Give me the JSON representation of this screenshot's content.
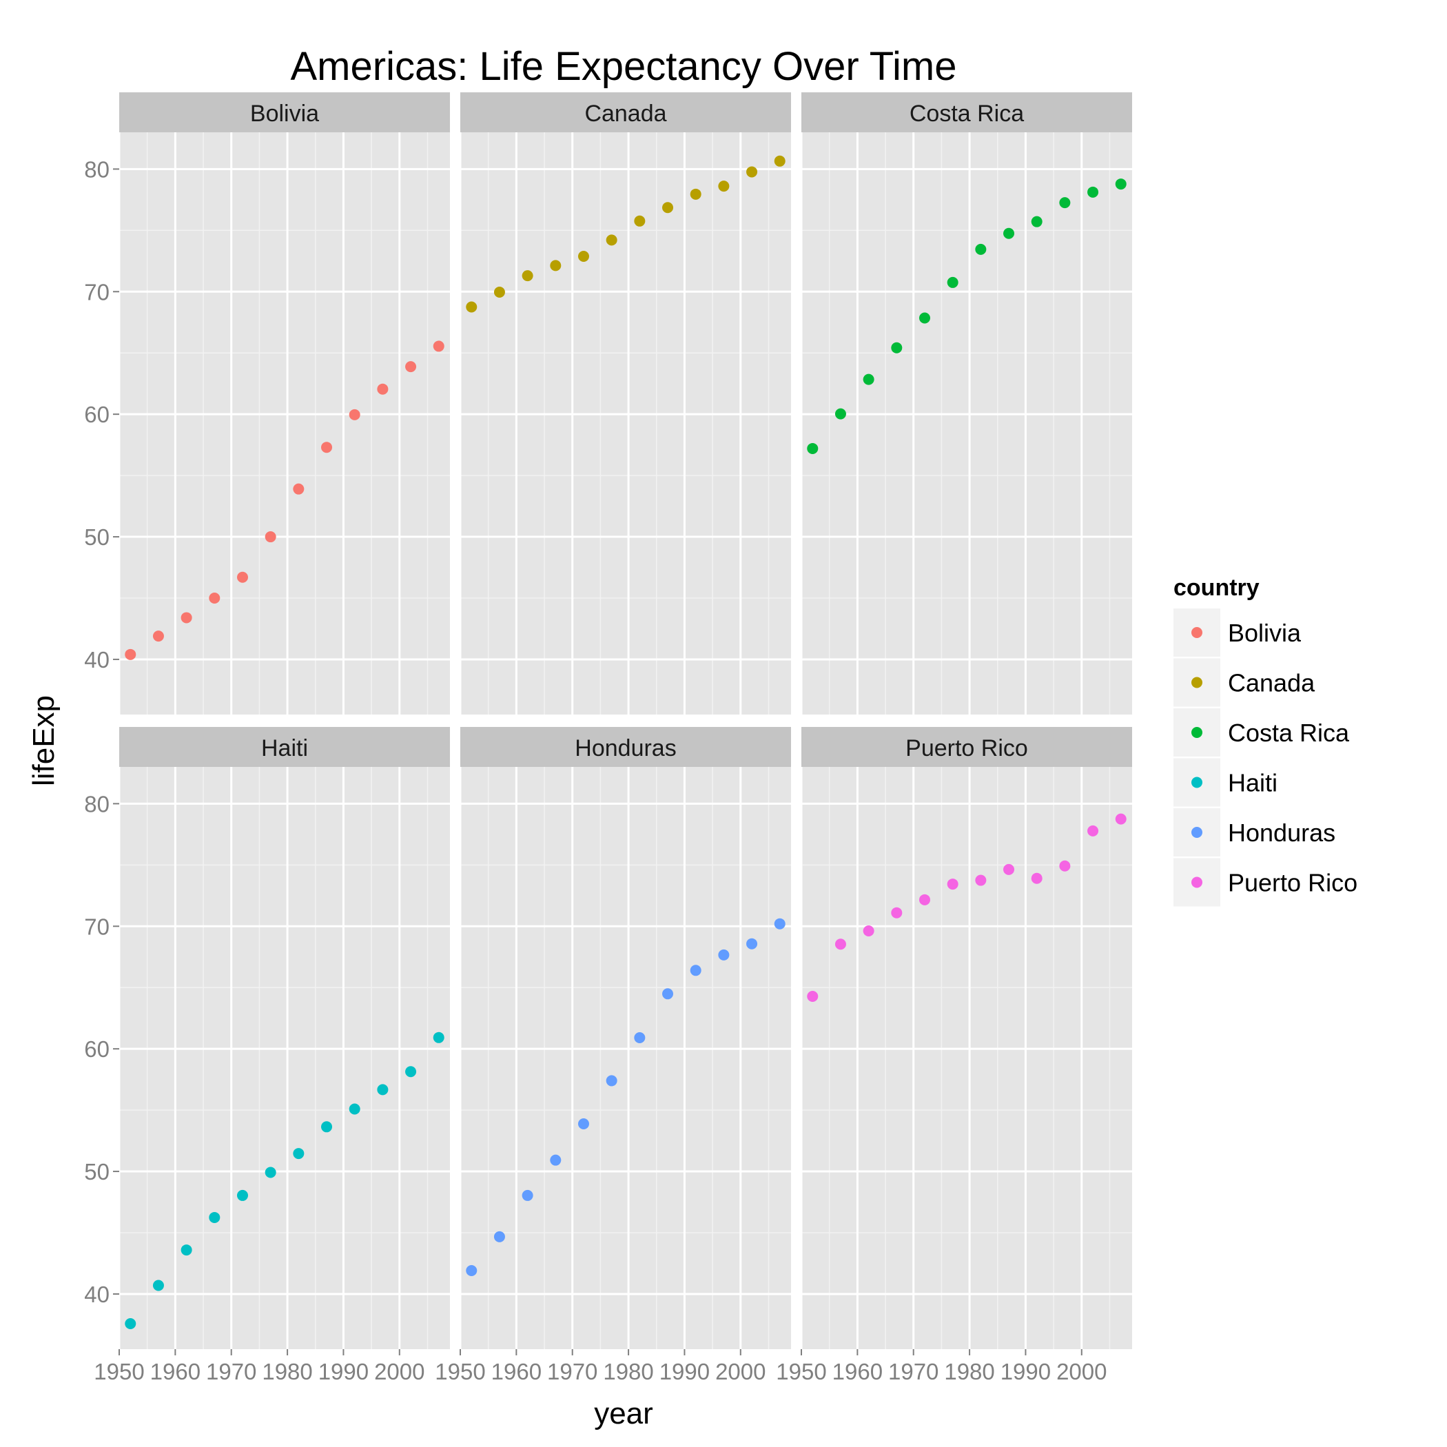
{
  "chart_data": {
    "type": "scatter",
    "title": "Americas: Life Expectancy Over Time",
    "xlabel": "year",
    "ylabel": "lifeExp",
    "facet_layout": "2x3",
    "xlim": [
      1950,
      2009
    ],
    "ylim": [
      35.5,
      83
    ],
    "x_ticks": [
      1950,
      1960,
      1970,
      1980,
      1990,
      2000
    ],
    "y_ticks": [
      40,
      50,
      60,
      70,
      80
    ],
    "grid": true,
    "legend": {
      "title": "country",
      "position": "right"
    },
    "x": [
      1952,
      1957,
      1962,
      1967,
      1972,
      1977,
      1982,
      1987,
      1992,
      1997,
      2002,
      2007
    ],
    "series": [
      {
        "name": "Bolivia",
        "color": "#F8766D",
        "values": [
          40.4,
          41.9,
          43.4,
          45.0,
          46.7,
          50.0,
          53.9,
          57.3,
          59.96,
          62.05,
          63.88,
          65.55
        ]
      },
      {
        "name": "Canada",
        "color": "#B79F00",
        "values": [
          68.75,
          69.96,
          71.3,
          72.13,
          72.88,
          74.21,
          75.76,
          76.86,
          77.95,
          78.61,
          79.77,
          80.65
        ]
      },
      {
        "name": "Costa Rica",
        "color": "#00BA38",
        "values": [
          57.2,
          60.03,
          62.84,
          65.42,
          67.85,
          70.75,
          73.45,
          74.75,
          75.71,
          77.26,
          78.12,
          78.78
        ]
      },
      {
        "name": "Haiti",
        "color": "#00BFC4",
        "values": [
          37.58,
          40.7,
          43.59,
          46.24,
          48.04,
          49.92,
          51.46,
          53.64,
          55.09,
          56.67,
          58.14,
          60.92
        ]
      },
      {
        "name": "Honduras",
        "color": "#619CFF",
        "values": [
          41.91,
          44.67,
          48.04,
          50.92,
          53.88,
          57.4,
          60.91,
          64.49,
          66.4,
          67.66,
          68.57,
          70.2
        ]
      },
      {
        "name": "Puerto Rico",
        "color": "#F564E3",
        "values": [
          64.28,
          68.54,
          69.62,
          71.1,
          72.16,
          73.44,
          73.75,
          74.63,
          73.91,
          74.92,
          77.78,
          78.75
        ]
      }
    ]
  }
}
